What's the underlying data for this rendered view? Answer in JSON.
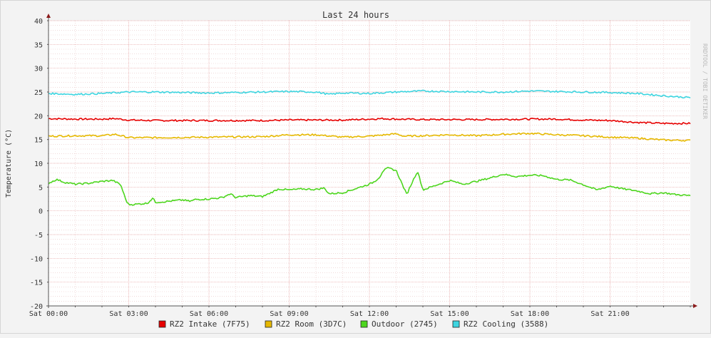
{
  "chart_data": {
    "type": "line",
    "title": "Last 24 hours",
    "ylabel": "Temperature (°C)",
    "xlabel": "",
    "watermark": "RRDTOOL / TOBI OETIKER",
    "ylim": [
      -20,
      40
    ],
    "y_major_ticks": [
      -20,
      -15,
      -10,
      -5,
      0,
      5,
      10,
      15,
      20,
      25,
      30,
      35,
      40
    ],
    "x_range_hours": [
      0,
      24
    ],
    "x_tick_labels": [
      "Sat 00:00",
      "Sat 03:00",
      "Sat 06:00",
      "Sat 09:00",
      "Sat 12:00",
      "Sat 15:00",
      "Sat 18:00",
      "Sat 21:00"
    ],
    "grid": true,
    "legend_position": "bottom",
    "colors": {
      "background": "#ffffff",
      "grid_minor": "#e8c4c4",
      "grid_major": "#e39b9b",
      "axis": "#8b1a1a"
    },
    "series": [
      {
        "name": "RZ2 Intake (7F75)",
        "color": "#e60000",
        "x": [
          0,
          1,
          2,
          2.5,
          3,
          4,
          6,
          8,
          9,
          11,
          12,
          12.5,
          13,
          14,
          16,
          18,
          19,
          20,
          21,
          22,
          23,
          24
        ],
        "values": [
          19.4,
          19.3,
          19.3,
          19.4,
          19.1,
          19.0,
          19.0,
          19.0,
          19.1,
          19.1,
          19.3,
          19.4,
          19.3,
          19.2,
          19.2,
          19.3,
          19.3,
          19.1,
          19.0,
          18.6,
          18.4,
          18.4
        ]
      },
      {
        "name": "RZ2 Room (3D7C)",
        "color": "#e6b800",
        "x": [
          0,
          1,
          2,
          2.5,
          3,
          4,
          6,
          8,
          9,
          10,
          11,
          12,
          13,
          13.3,
          14,
          15,
          16,
          17,
          18,
          19,
          20,
          21,
          22,
          23,
          24
        ],
        "values": [
          15.7,
          15.8,
          15.8,
          16.1,
          15.4,
          15.4,
          15.5,
          15.6,
          16.0,
          16.0,
          15.5,
          15.7,
          16.2,
          15.7,
          15.8,
          16.0,
          15.8,
          16.1,
          16.3,
          16.0,
          15.8,
          15.5,
          15.3,
          14.9,
          14.8
        ]
      },
      {
        "name": "Outdoor (2745)",
        "color": "#4dd61e",
        "x": [
          0,
          0.3,
          0.6,
          1,
          1.5,
          2,
          2.4,
          2.7,
          2.9,
          3.0,
          3.3,
          3.7,
          3.9,
          4.0,
          4.3,
          5,
          5.3,
          5.5,
          6,
          6.5,
          6.8,
          7,
          7.5,
          8,
          8.2,
          8.6,
          9.0,
          9.5,
          10,
          10.3,
          10.5,
          11,
          11.5,
          12,
          12.2,
          12.4,
          12.5,
          12.7,
          13.0,
          13.4,
          13.5,
          13.8,
          14,
          14.3,
          15,
          15.5,
          16,
          16.5,
          17,
          17.5,
          18,
          18.5,
          19,
          19.5,
          20,
          20.5,
          21,
          21.5,
          22,
          22.5,
          23,
          23.5,
          24
        ],
        "values": [
          5.8,
          6.6,
          6.0,
          5.6,
          5.8,
          6.2,
          6.4,
          5.5,
          2.2,
          1.3,
          1.4,
          1.6,
          2.7,
          1.8,
          1.9,
          2.3,
          2.0,
          2.4,
          2.5,
          2.8,
          3.6,
          2.8,
          3.2,
          3.0,
          3.5,
          4.6,
          4.4,
          4.6,
          4.5,
          4.8,
          3.6,
          3.8,
          4.7,
          5.6,
          6.2,
          7.2,
          8.4,
          9.0,
          8.5,
          3.4,
          4.8,
          8.4,
          4.4,
          5.0,
          6.4,
          5.6,
          6.2,
          6.9,
          7.7,
          7.2,
          7.5,
          7.4,
          6.6,
          6.5,
          5.5,
          4.4,
          5.2,
          4.6,
          4.2,
          3.6,
          3.8,
          3.4,
          3.2
        ]
      },
      {
        "name": "RZ2 Cooling (3588)",
        "color": "#3dd5e0",
        "x": [
          0,
          1,
          2,
          3,
          4,
          5,
          6,
          7,
          8,
          9,
          10,
          10.5,
          11,
          12,
          13,
          14,
          15,
          16,
          17,
          18,
          19,
          20,
          21,
          22,
          23,
          24
        ],
        "values": [
          24.7,
          24.5,
          24.7,
          25.0,
          25.0,
          24.9,
          24.8,
          24.9,
          25.0,
          25.1,
          25.0,
          24.5,
          24.8,
          24.7,
          25.0,
          25.2,
          25.1,
          25.0,
          25.0,
          25.2,
          25.1,
          25.0,
          24.9,
          24.7,
          24.2,
          23.8
        ]
      }
    ]
  }
}
